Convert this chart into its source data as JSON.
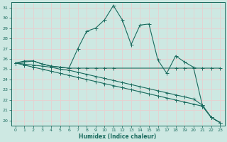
{
  "xlabel": "Humidex (Indice chaleur)",
  "xlim": [
    -0.5,
    23.5
  ],
  "ylim": [
    19.5,
    31.5
  ],
  "xticks": [
    0,
    1,
    2,
    3,
    4,
    5,
    6,
    7,
    8,
    9,
    10,
    11,
    12,
    13,
    14,
    15,
    16,
    17,
    18,
    19,
    20,
    21,
    22,
    23
  ],
  "yticks": [
    20,
    21,
    22,
    23,
    24,
    25,
    26,
    27,
    28,
    29,
    30,
    31
  ],
  "bg_color": "#cde8e2",
  "line_color": "#1a6b5e",
  "grid_color": "#e8d0d0",
  "line1_x": [
    0,
    1,
    2,
    3,
    4,
    5,
    6,
    7,
    8,
    9,
    10,
    11,
    12,
    13,
    14,
    15,
    16,
    17,
    18,
    19,
    20,
    21,
    22,
    23
  ],
  "line1_y": [
    25.6,
    25.8,
    25.8,
    25.5,
    25.3,
    25.2,
    25.1,
    27.0,
    28.7,
    29.0,
    29.8,
    31.2,
    29.8,
    27.4,
    29.3,
    29.4,
    25.9,
    24.6,
    26.3,
    25.7,
    25.2,
    21.5,
    20.3,
    19.8
  ],
  "line2_x": [
    0,
    2,
    3,
    4,
    5,
    6,
    7,
    8,
    9,
    10,
    11,
    18,
    19,
    20,
    21,
    22,
    23
  ],
  "line2_y": [
    25.6,
    25.8,
    25.5,
    25.3,
    25.2,
    25.1,
    25.1,
    25.1,
    25.1,
    25.1,
    25.1,
    25.1,
    25.1,
    25.1,
    25.1,
    25.1,
    25.1
  ],
  "line3_x": [
    0,
    1,
    2,
    3,
    4,
    5,
    6,
    7,
    8,
    9,
    10,
    11,
    12,
    13,
    14,
    15,
    16,
    17,
    18,
    19,
    20,
    21,
    22,
    23
  ],
  "line3_y": [
    25.6,
    25.5,
    25.4,
    25.3,
    25.2,
    25.0,
    24.9,
    24.7,
    24.5,
    24.3,
    24.1,
    23.9,
    23.7,
    23.5,
    23.3,
    23.1,
    22.9,
    22.7,
    22.5,
    22.3,
    22.1,
    21.5,
    20.3,
    19.8
  ],
  "line4_x": [
    0,
    1,
    2,
    3,
    4,
    5,
    6,
    7,
    8,
    9,
    10,
    11,
    12,
    13,
    14,
    15,
    16,
    17,
    18,
    19,
    20,
    21,
    22,
    23
  ],
  "line4_y": [
    25.6,
    25.4,
    25.2,
    25.0,
    24.8,
    24.6,
    24.4,
    24.2,
    24.0,
    23.8,
    23.6,
    23.4,
    23.2,
    23.0,
    22.8,
    22.6,
    22.4,
    22.2,
    22.0,
    21.8,
    21.6,
    21.4,
    20.3,
    19.8
  ]
}
